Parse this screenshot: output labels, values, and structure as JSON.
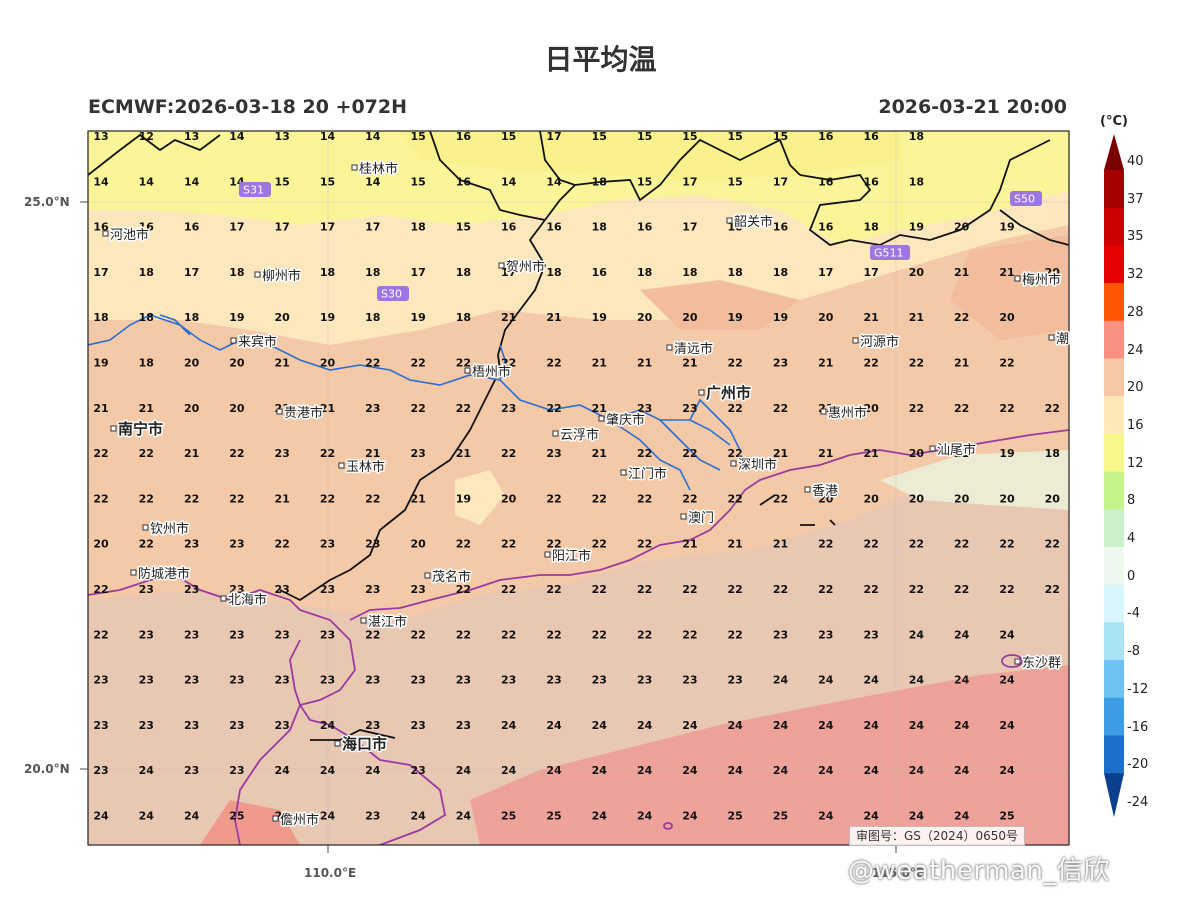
{
  "title": "日平均温",
  "subtitle_left": "ECMWF:2026-03-18 20 +072H",
  "subtitle_right": "2026-03-21 20:00",
  "lat_labels": [
    "25.0°N",
    "20.0°N"
  ],
  "lon_labels": [
    "110.0°E",
    "115.0°E"
  ],
  "audit_number": "审图号：GS（2024）0650号",
  "watermark": "@weatherman_信欣",
  "colorbar": {
    "unit": "(°C)",
    "ticks": [
      "40",
      "37",
      "35",
      "32",
      "28",
      "24",
      "20",
      "16",
      "12",
      "8",
      "4",
      "0",
      "-4",
      "-8",
      "-12",
      "-16",
      "-20",
      "-24"
    ],
    "colors": [
      "#7a0000",
      "#a50000",
      "#cc0000",
      "#e60000",
      "#ff5500",
      "#f99080",
      "#f6c7a4",
      "#fde8b8",
      "#f8f78a",
      "#c6f38a",
      "#cdf1cc",
      "#eef8ee",
      "#d8f6fb",
      "#a7e2f5",
      "#6cc3f3",
      "#3d9ce6",
      "#1b6ec9",
      "#0a3f8e"
    ]
  },
  "cities": [
    {
      "name": "桂林市"
    },
    {
      "name": "河池市"
    },
    {
      "name": "柳州市"
    },
    {
      "name": "贺州市"
    },
    {
      "name": "韶关市"
    },
    {
      "name": "梅州市"
    },
    {
      "name": "来宾市"
    },
    {
      "name": "清远市"
    },
    {
      "name": "河源市"
    },
    {
      "name": "梧州市"
    },
    {
      "name": "广州市"
    },
    {
      "name": "潮"
    },
    {
      "name": "南宁市"
    },
    {
      "name": "贵港市"
    },
    {
      "name": "云浮市"
    },
    {
      "name": "肇庆市"
    },
    {
      "name": "惠州市"
    },
    {
      "name": "玉林市"
    },
    {
      "name": "江门市"
    },
    {
      "name": "深圳市"
    },
    {
      "name": "汕尾市"
    },
    {
      "name": "香港"
    },
    {
      "name": "澳门"
    },
    {
      "name": "钦州市"
    },
    {
      "name": "阳江市"
    },
    {
      "name": "防城港市"
    },
    {
      "name": "茂名市"
    },
    {
      "name": "北海市"
    },
    {
      "name": "湛江市"
    },
    {
      "name": "东沙群"
    },
    {
      "name": "海口市"
    },
    {
      "name": "儋州市"
    }
  ],
  "road_badges": [
    "S31",
    "S30",
    "S50",
    "G511"
  ],
  "temperature_grid": [
    [
      "13",
      "12",
      "13",
      "14",
      "13",
      "14",
      "14",
      "15",
      "16",
      "15",
      "17",
      "15",
      "15",
      "15",
      "15",
      "15",
      "16",
      "16",
      "18"
    ],
    [
      "14",
      "14",
      "14",
      "14",
      "15",
      "15",
      "14",
      "15",
      "16",
      "14",
      "14",
      "18",
      "15",
      "17",
      "15",
      "17",
      "16",
      "16",
      "18"
    ],
    [
      "16",
      "16",
      "16",
      "17",
      "17",
      "17",
      "17",
      "18",
      "15",
      "16",
      "16",
      "18",
      "16",
      "17",
      "18",
      "16",
      "16",
      "18",
      "19",
      "20",
      "19"
    ],
    [
      "17",
      "18",
      "17",
      "18",
      "18",
      "18",
      "18",
      "17",
      "18",
      "17",
      "18",
      "16",
      "18",
      "18",
      "18",
      "18",
      "17",
      "17",
      "20",
      "21",
      "21",
      "20"
    ],
    [
      "18",
      "18",
      "18",
      "19",
      "20",
      "19",
      "18",
      "19",
      "18",
      "21",
      "21",
      "19",
      "20",
      "20",
      "19",
      "19",
      "20",
      "21",
      "21",
      "22",
      "20"
    ],
    [
      "19",
      "18",
      "20",
      "20",
      "21",
      "20",
      "22",
      "22",
      "22",
      "22",
      "22",
      "21",
      "21",
      "21",
      "22",
      "23",
      "21",
      "22",
      "22",
      "21",
      "22"
    ],
    [
      "21",
      "21",
      "20",
      "20",
      "21",
      "21",
      "23",
      "22",
      "22",
      "23",
      "22",
      "21",
      "23",
      "23",
      "22",
      "22",
      "21",
      "20",
      "22",
      "22",
      "22",
      "22"
    ],
    [
      "22",
      "22",
      "21",
      "22",
      "23",
      "22",
      "21",
      "23",
      "21",
      "22",
      "23",
      "21",
      "22",
      "22",
      "22",
      "21",
      "21",
      "21",
      "20",
      "21",
      "19",
      "18"
    ],
    [
      "22",
      "22",
      "22",
      "22",
      "21",
      "22",
      "22",
      "21",
      "19",
      "20",
      "22",
      "22",
      "22",
      "22",
      "22",
      "22",
      "20",
      "20",
      "20",
      "20",
      "20",
      "20"
    ],
    [
      "20",
      "22",
      "23",
      "23",
      "22",
      "23",
      "23",
      "20",
      "22",
      "22",
      "22",
      "22",
      "22",
      "21",
      "21",
      "21",
      "22",
      "22",
      "22",
      "22",
      "22",
      "22"
    ],
    [
      "22",
      "23",
      "23",
      "23",
      "23",
      "23",
      "23",
      "23",
      "22",
      "22",
      "22",
      "22",
      "22",
      "22",
      "22",
      "22",
      "22",
      "22",
      "22",
      "22",
      "22",
      "22"
    ],
    [
      "22",
      "23",
      "23",
      "23",
      "23",
      "23",
      "22",
      "22",
      "22",
      "22",
      "22",
      "22",
      "22",
      "22",
      "22",
      "23",
      "23",
      "23",
      "24",
      "24",
      "24"
    ],
    [
      "23",
      "23",
      "23",
      "23",
      "23",
      "23",
      "23",
      "23",
      "23",
      "23",
      "23",
      "23",
      "23",
      "23",
      "23",
      "24",
      "24",
      "24",
      "24",
      "24",
      "24"
    ],
    [
      "23",
      "23",
      "23",
      "23",
      "23",
      "24",
      "23",
      "23",
      "23",
      "24",
      "24",
      "24",
      "24",
      "24",
      "24",
      "24",
      "24",
      "24",
      "24",
      "24",
      "24"
    ],
    [
      "23",
      "24",
      "23",
      "23",
      "24",
      "24",
      "24",
      "23",
      "24",
      "24",
      "24",
      "24",
      "24",
      "24",
      "24",
      "24",
      "24",
      "24",
      "24",
      "24",
      "24"
    ],
    [
      "24",
      "24",
      "24",
      "25",
      "24",
      "24",
      "23",
      "24",
      "24",
      "25",
      "25",
      "24",
      "24",
      "24",
      "25",
      "25",
      "24",
      "24",
      "24",
      "24",
      "25"
    ]
  ]
}
